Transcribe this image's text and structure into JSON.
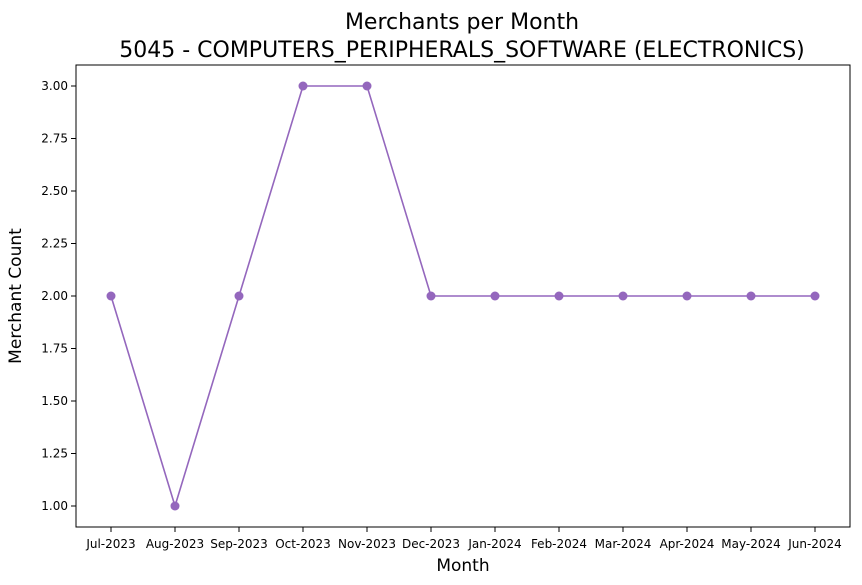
{
  "chart_data": {
    "type": "line",
    "title": "Merchants per Month",
    "subtitle": "5045 - COMPUTERS_PERIPHERALS_SOFTWARE (ELECTRONICS)",
    "xlabel": "Month",
    "ylabel": "Merchant Count",
    "categories": [
      "Jul-2023",
      "Aug-2023",
      "Sep-2023",
      "Oct-2023",
      "Nov-2023",
      "Dec-2023",
      "Jan-2024",
      "Feb-2024",
      "Mar-2024",
      "Apr-2024",
      "May-2024",
      "Jun-2024"
    ],
    "series": [
      {
        "values": [
          2,
          1,
          2,
          3,
          3,
          2,
          2,
          2,
          2,
          2,
          2,
          2
        ],
        "color": "#9467bd",
        "marker": "circle"
      }
    ],
    "yticks": [
      "1.00",
      "1.25",
      "1.50",
      "1.75",
      "2.00",
      "2.25",
      "2.50",
      "2.75",
      "3.00"
    ],
    "ylim": [
      0.9,
      3.1
    ],
    "grid": false,
    "legend": false
  }
}
